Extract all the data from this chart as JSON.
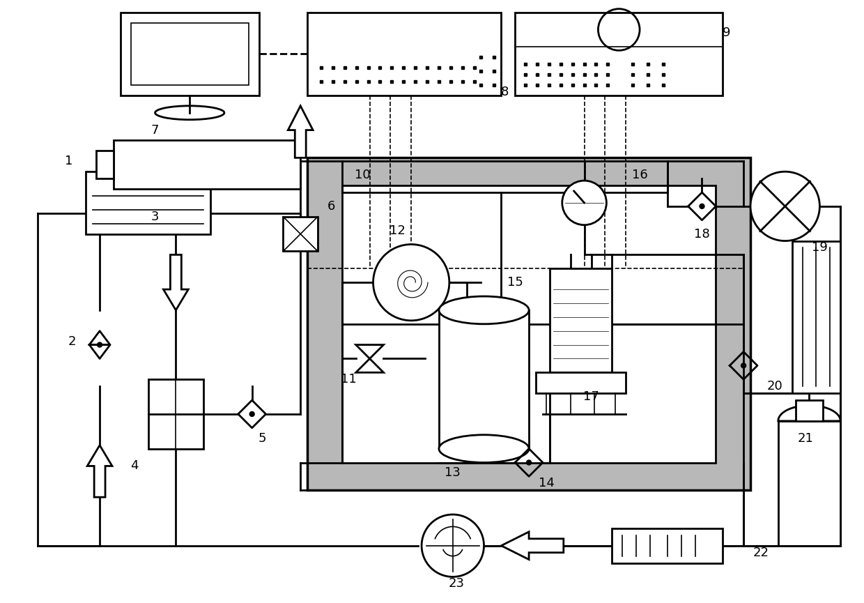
{
  "bg_color": "#ffffff",
  "line_color": "#000000",
  "label_fontsize": 13,
  "linewidth": 2.0,
  "thin_lw": 1.2,
  "fig_width": 12.4,
  "fig_height": 8.65
}
